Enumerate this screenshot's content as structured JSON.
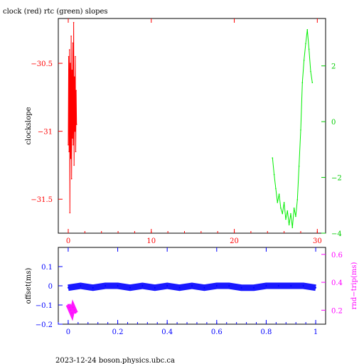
{
  "title": "clock (red) rtc (green) slopes",
  "footer": "2023-12-24 boson.physics.ubc.ca",
  "colors": {
    "clock": "#ff0000",
    "rtc": "#00ee00",
    "offset": "#0000ff",
    "rndtrip": "#ff00ff",
    "axis": "#000000"
  },
  "chart_data": [
    {
      "type": "line",
      "title": "clock (red) rtc (green) slopes",
      "ylabel": "clockslope",
      "y2label": "",
      "xlim": [
        -1.2,
        31
      ],
      "ylim": [
        -31.75,
        -30.17
      ],
      "y2lim": [
        -4,
        3.7
      ],
      "xticks": [
        0,
        10,
        20,
        30
      ],
      "xtick_labels": [
        "0",
        "10",
        "20",
        "30"
      ],
      "yticks": [
        -30,
        -30.5,
        -31,
        -31.5
      ],
      "ytick_labels": [
        "−30",
        "−30.5",
        "−31",
        "−31.5"
      ],
      "y2ticks": [
        2,
        0,
        -2,
        -4
      ],
      "y2tick_labels": [
        "2",
        "0",
        "−2",
        "−4"
      ],
      "series": [
        {
          "name": "clock",
          "axis": "left",
          "x": [
            0,
            0.05,
            0.1,
            0.15,
            0.2,
            0.25,
            0.3,
            0.35,
            0.4,
            0.45,
            0.5,
            0.55,
            0.6,
            0.65,
            0.7,
            0.75,
            0.8,
            0.85,
            0.9,
            0.95,
            1.0
          ],
          "y": [
            -31.1,
            -30.45,
            -31.15,
            -30.4,
            -31.6,
            -30.5,
            -31.2,
            -30.3,
            -31.35,
            -30.55,
            -31.05,
            -30.35,
            -31.1,
            -30.2,
            -31.25,
            -30.6,
            -31.0,
            -30.45,
            -31.15,
            -30.7,
            -30.95
          ]
        },
        {
          "name": "rtc",
          "axis": "right",
          "x": [
            24.6,
            24.8,
            25.0,
            25.2,
            25.4,
            25.6,
            25.8,
            26.0,
            26.2,
            26.4,
            26.6,
            26.8,
            27.0,
            27.2,
            27.4,
            27.6,
            27.8,
            28.0,
            28.2,
            28.4,
            28.6,
            28.8,
            29.0,
            29.2,
            29.4
          ],
          "y": [
            -1.3,
            -1.9,
            -2.4,
            -2.9,
            -2.6,
            -3.1,
            -3.3,
            -2.9,
            -3.5,
            -3.2,
            -3.7,
            -3.3,
            -3.8,
            -3.1,
            -3.4,
            -2.8,
            -1.6,
            -0.3,
            1.4,
            2.2,
            2.8,
            3.3,
            2.6,
            1.8,
            1.4
          ]
        }
      ]
    },
    {
      "type": "scatter",
      "ylabel": "offset(ms)",
      "y2label": "rnd−trip(ms)",
      "xlim": [
        -0.04,
        1.04
      ],
      "ylim": [
        -0.2,
        0.2
      ],
      "y2lim": [
        0.1,
        0.65
      ],
      "xticks": [
        0,
        0.2,
        0.4,
        0.6,
        0.8,
        1
      ],
      "xtick_labels": [
        "0",
        "0.2",
        "0.4",
        "0.6",
        "0.8",
        "1"
      ],
      "yticks": [
        0.1,
        0,
        -0.1,
        -0.2
      ],
      "ytick_labels": [
        "0.1",
        "0",
        "−0.1",
        "−0.2"
      ],
      "y2ticks": [
        0.6,
        0.4,
        0.2
      ],
      "y2tick_labels": [
        "0.6",
        "0.4",
        "0.2"
      ],
      "series": [
        {
          "name": "offset",
          "axis": "left",
          "x": [
            0,
            0.05,
            0.1,
            0.15,
            0.2,
            0.25,
            0.3,
            0.35,
            0.4,
            0.45,
            0.5,
            0.55,
            0.6,
            0.65,
            0.7,
            0.75,
            0.8,
            0.85,
            0.9,
            0.95,
            1.0
          ],
          "y": [
            -0.01,
            0.0,
            -0.01,
            0.0,
            0.0,
            -0.01,
            0.0,
            -0.01,
            0.0,
            -0.01,
            0.0,
            -0.01,
            0.0,
            0.0,
            -0.01,
            -0.01,
            0.0,
            0.0,
            0.0,
            0.0,
            -0.01
          ]
        },
        {
          "name": "rndtrip",
          "axis": "right",
          "x": [
            0.0,
            0.005,
            0.01,
            0.015,
            0.02,
            0.025,
            0.03
          ],
          "y": [
            0.24,
            0.22,
            0.2,
            0.18,
            0.22,
            0.2,
            0.18
          ]
        }
      ]
    }
  ]
}
